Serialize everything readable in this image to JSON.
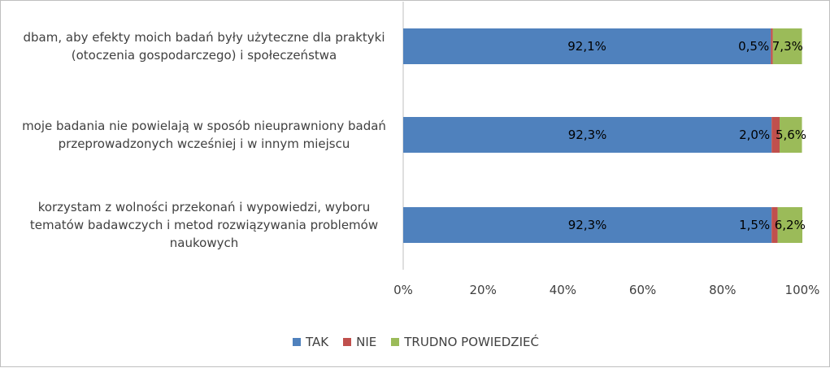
{
  "chart_data": {
    "type": "bar",
    "orientation": "horizontal",
    "stacked": true,
    "categories": [
      [
        "dbam, aby efekty moich badań były użyteczne dla praktyki",
        "(otoczenia gospodarczego) i społeczeństwa"
      ],
      [
        "moje badania nie powielają w sposób nieuprawniony badań",
        "przeprowadzonych wcześniej i w innym miejscu"
      ],
      [
        "korzystam z wolności przekonań i wypowiedzi, wyboru",
        "tematów badawczych i metod rozwiązywania problemów",
        "naukowych"
      ]
    ],
    "series": [
      {
        "name": "TAK",
        "color": "#4f81bd",
        "values": [
          92.1,
          92.3,
          92.3
        ],
        "labels": [
          "92,1%",
          "92,3%",
          "92,3%"
        ]
      },
      {
        "name": "NIE",
        "color": "#c0504d",
        "values": [
          0.5,
          2.0,
          1.5
        ],
        "labels": [
          "0,5%",
          "2,0%",
          "1,5%"
        ]
      },
      {
        "name": "TRUDNO POWIEDZIEĆ",
        "color": "#9bbb59",
        "values": [
          7.3,
          5.6,
          6.2
        ],
        "labels": [
          "7,3%",
          "5,6%",
          "6,2%"
        ]
      }
    ],
    "xlim": [
      0,
      100
    ],
    "xticks": [
      "0%",
      "20%",
      "40%",
      "60%",
      "80%",
      "100%"
    ],
    "grid": false,
    "legend_position": "bottom"
  }
}
